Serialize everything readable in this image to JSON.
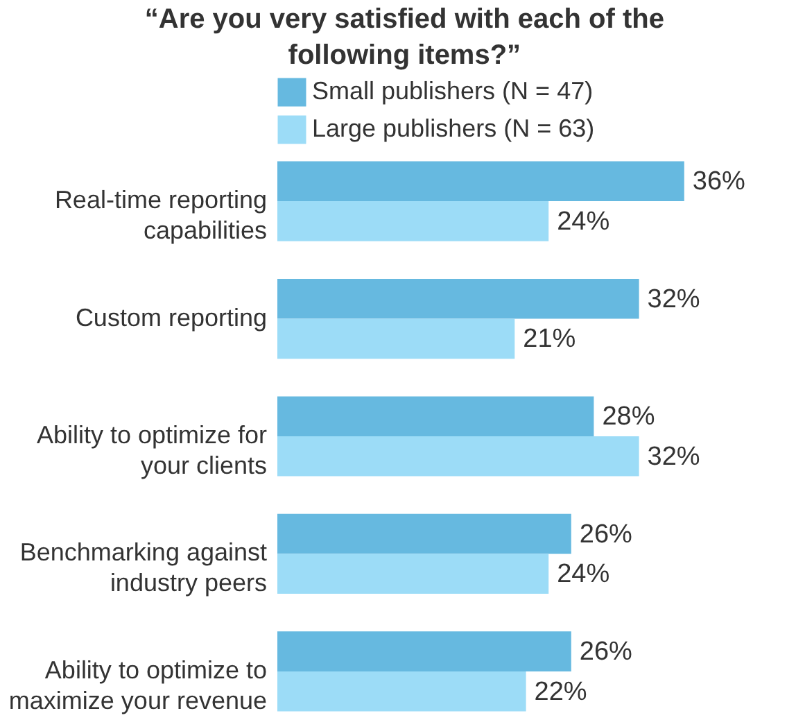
{
  "chart_data": {
    "type": "bar",
    "orientation": "horizontal",
    "title": "“Are you very satisfied with each of the following items?”",
    "categories": [
      "Real-time reporting capabilities",
      "Custom reporting",
      "Ability to optimize for your clients",
      "Benchmarking against industry peers",
      "Ability to optimize to maximize your revenue"
    ],
    "series": [
      {
        "name": "Small publishers (N = 47)",
        "color": "#66b9e0",
        "values": [
          36,
          32,
          28,
          26,
          26
        ],
        "value_labels": [
          "36%",
          "32%",
          "28%",
          "26%",
          "26%"
        ]
      },
      {
        "name": "Large publishers (N = 63)",
        "color": "#9cdcf7",
        "values": [
          24,
          21,
          32,
          24,
          22
        ],
        "value_labels": [
          "24%",
          "21%",
          "32%",
          "24%",
          "22%"
        ]
      }
    ],
    "legend": "top",
    "grid": false
  }
}
